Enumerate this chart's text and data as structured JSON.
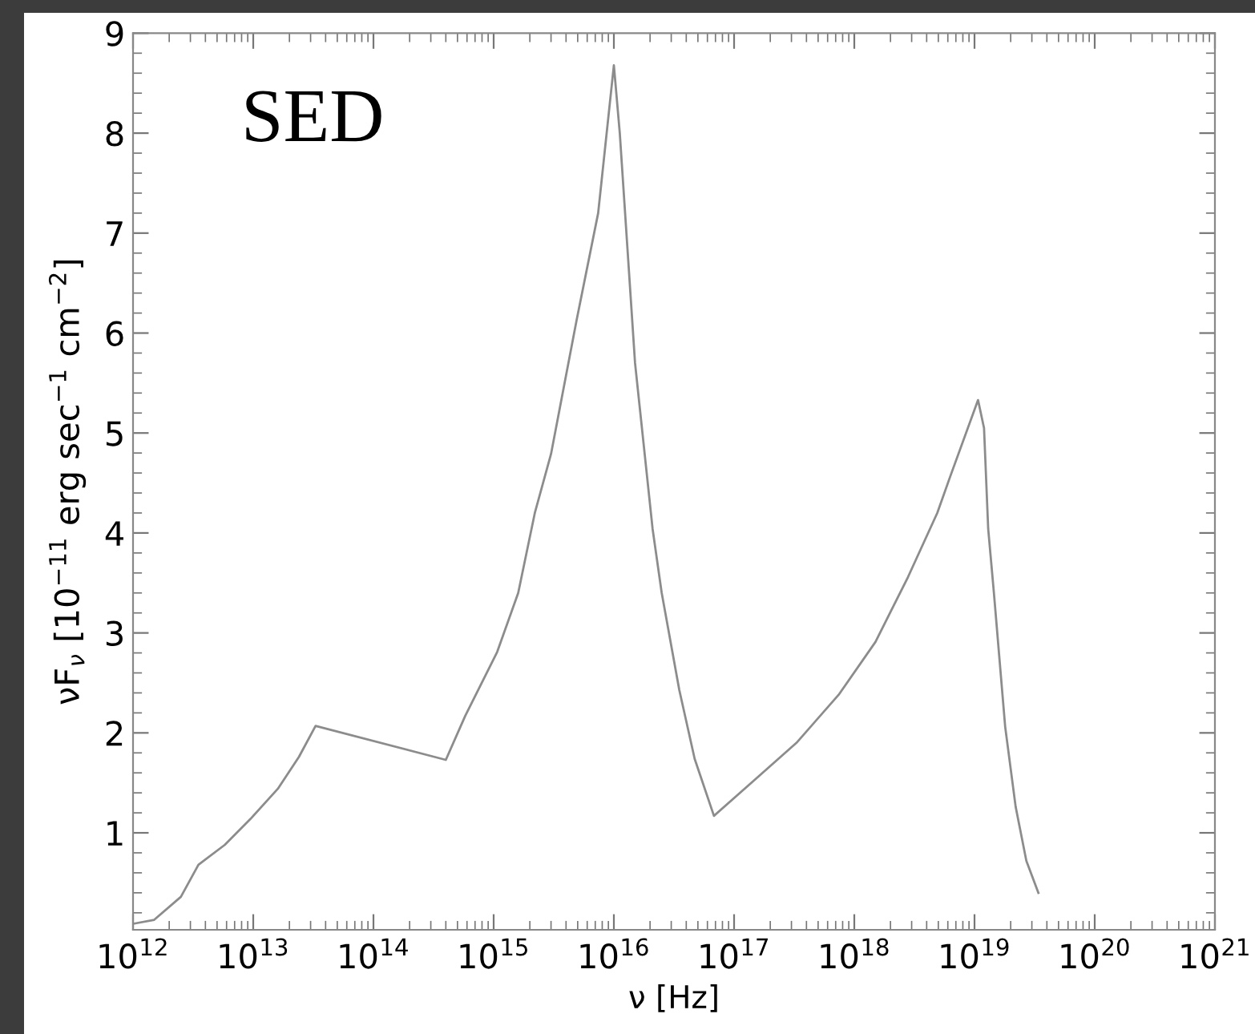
{
  "chart_data": {
    "type": "line",
    "title": "SED",
    "xlabel": "ν [Hz]",
    "ylabel": "νF$_{ν}$ [10$^{−11}$ erg sec$^{−1}$ cm$^{−2}$]",
    "log": "x",
    "grid": false,
    "marker": "none",
    "line_style": "solid",
    "xlim": [
      1000000000000.0,
      1e+21
    ],
    "ylim": [
      0.03,
      9
    ],
    "xticks": [
      {
        "value": 1000000000000.0,
        "label": "10$^{12}$"
      },
      {
        "value": 10000000000000.0,
        "label": "10$^{13}$"
      },
      {
        "value": 100000000000000.0,
        "label": "10$^{14}$"
      },
      {
        "value": 1000000000000000.0,
        "label": "10$^{15}$"
      },
      {
        "value": 1e+16,
        "label": "10$^{16}$"
      },
      {
        "value": 1e+17,
        "label": "10$^{17}$"
      },
      {
        "value": 1e+18,
        "label": "10$^{18}$"
      },
      {
        "value": 1e+19,
        "label": "10$^{19}$"
      },
      {
        "value": 1e+20,
        "label": "10$^{20}$"
      },
      {
        "value": 1e+21,
        "label": "10$^{21}$"
      }
    ],
    "yticks": [
      1,
      2,
      3,
      4,
      5,
      6,
      7,
      8,
      9
    ],
    "series": [
      {
        "color": "#8c8c8c",
        "x": [
          1000000000000.0,
          1500000000000.0,
          2500000000000.0,
          3500000000000.0,
          5800000000000.0,
          9500000000000.0,
          16000000000000.0,
          24000000000000.0,
          33000000000000.0,
          400000000000000.0,
          580000000000000.0,
          1070000000000000.0,
          1600000000000000.0,
          2200000000000000.0,
          3000000000000000.0,
          4900000000000000.0,
          7400000000000000.0,
          1e+16,
          1.12e+16,
          1.5e+16,
          2.1e+16,
          2.5e+16,
          3.5e+16,
          4.7e+16,
          6.8e+16,
          1.45e+17,
          3.3e+17,
          7.4e+17,
          1.5e+18,
          2.8e+18,
          4.9e+18,
          6.3e+18,
          1.07e+19,
          1.2e+19,
          1.3e+19,
          1.45e+19,
          1.8e+19,
          2.2e+19,
          2.7e+19,
          3.4e+19
        ],
        "values": [
          0.09,
          0.13,
          0.36,
          0.68,
          0.88,
          1.14,
          1.44,
          1.76,
          2.07,
          1.73,
          2.17,
          2.81,
          3.4,
          4.2,
          4.79,
          6.13,
          7.2,
          8.68,
          8.0,
          5.7,
          4.04,
          3.4,
          2.43,
          1.74,
          1.17,
          1.52,
          1.9,
          2.38,
          2.91,
          3.56,
          4.2,
          4.57,
          5.33,
          5.05,
          4.04,
          3.4,
          2.06,
          1.26,
          0.72,
          0.4
        ]
      }
    ]
  }
}
